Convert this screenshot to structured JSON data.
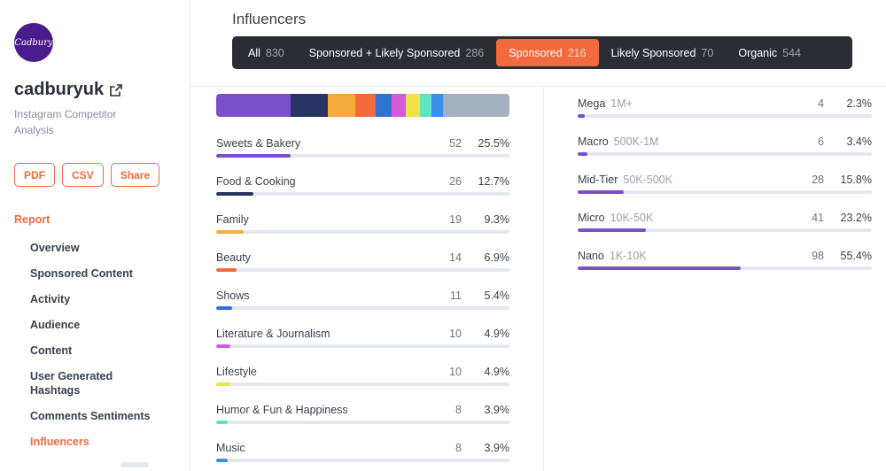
{
  "sidebar": {
    "logo_text": "Cadbury",
    "account_name": "cadburyuk",
    "subtitle": "Instagram Competitor Analysis",
    "buttons": {
      "pdf": "PDF",
      "csv": "CSV",
      "share": "Share"
    },
    "report_label": "Report",
    "nav": [
      "Overview",
      "Sponsored Content",
      "Activity",
      "Audience",
      "Content",
      "User Generated Hashtags",
      "Comments Sentiments",
      "Influencers"
    ],
    "active_nav": "Influencers"
  },
  "header": {
    "title": "Influencers",
    "filters": [
      {
        "label": "All",
        "count": "830"
      },
      {
        "label": "Sponsored + Likely Sponsored",
        "count": "286"
      },
      {
        "label": "Sponsored",
        "count": "216",
        "active": true
      },
      {
        "label": "Likely Sponsored",
        "count": "70"
      },
      {
        "label": "Organic",
        "count": "544"
      }
    ]
  },
  "colors": {
    "accent": "#f26a3d",
    "purple": "#7b4fc9",
    "navy": "#273461",
    "yellow_orange": "#f5ab3c",
    "orange": "#f26a3d",
    "blue": "#2e72d2",
    "pink": "#d35bd6",
    "yellow": "#f2e24a",
    "mint": "#5fe3c1",
    "sky": "#3a8fe8",
    "gray": "#a6b1bf"
  },
  "categories": [
    {
      "label": "Sweets & Bakery",
      "count": "52",
      "pct": "25.5%",
      "fill": 0.255,
      "color": "#7b4fc9"
    },
    {
      "label": "Food & Cooking",
      "count": "26",
      "pct": "12.7%",
      "fill": 0.127,
      "color": "#273461"
    },
    {
      "label": "Family",
      "count": "19",
      "pct": "9.3%",
      "fill": 0.093,
      "color": "#f5ab3c"
    },
    {
      "label": "Beauty",
      "count": "14",
      "pct": "6.9%",
      "fill": 0.069,
      "color": "#f26a3d"
    },
    {
      "label": "Shows",
      "count": "11",
      "pct": "5.4%",
      "fill": 0.054,
      "color": "#2e72d2"
    },
    {
      "label": "Literature & Journalism",
      "count": "10",
      "pct": "4.9%",
      "fill": 0.049,
      "color": "#d35bd6"
    },
    {
      "label": "Lifestyle",
      "count": "10",
      "pct": "4.9%",
      "fill": 0.049,
      "color": "#f2e24a"
    },
    {
      "label": "Humor & Fun & Happiness",
      "count": "8",
      "pct": "3.9%",
      "fill": 0.039,
      "color": "#5fe3c1"
    },
    {
      "label": "Music",
      "count": "8",
      "pct": "3.9%",
      "fill": 0.039,
      "color": "#3a8fe8"
    }
  ],
  "stacked_segments": [
    {
      "share": 0.255,
      "color": "#7b4fc9"
    },
    {
      "share": 0.127,
      "color": "#273461"
    },
    {
      "share": 0.093,
      "color": "#f5ab3c"
    },
    {
      "share": 0.069,
      "color": "#f26a3d"
    },
    {
      "share": 0.054,
      "color": "#2e72d2"
    },
    {
      "share": 0.049,
      "color": "#d35bd6"
    },
    {
      "share": 0.049,
      "color": "#f2e24a"
    },
    {
      "share": 0.039,
      "color": "#5fe3c1"
    },
    {
      "share": 0.039,
      "color": "#3a8fe8"
    },
    {
      "share": 0.226,
      "color": "#a6b1bf"
    }
  ],
  "tiers": [
    {
      "label": "Mega",
      "range": "1M+",
      "count": "4",
      "pct": "2.3%",
      "fill": 0.023
    },
    {
      "label": "Macro",
      "range": "500K-1M",
      "count": "6",
      "pct": "3.4%",
      "fill": 0.034
    },
    {
      "label": "Mid-Tier",
      "range": "50K-500K",
      "count": "28",
      "pct": "15.8%",
      "fill": 0.158
    },
    {
      "label": "Micro",
      "range": "10K-50K",
      "count": "41",
      "pct": "23.2%",
      "fill": 0.232
    },
    {
      "label": "Nano",
      "range": "1K-10K",
      "count": "98",
      "pct": "55.4%",
      "fill": 0.554
    }
  ]
}
